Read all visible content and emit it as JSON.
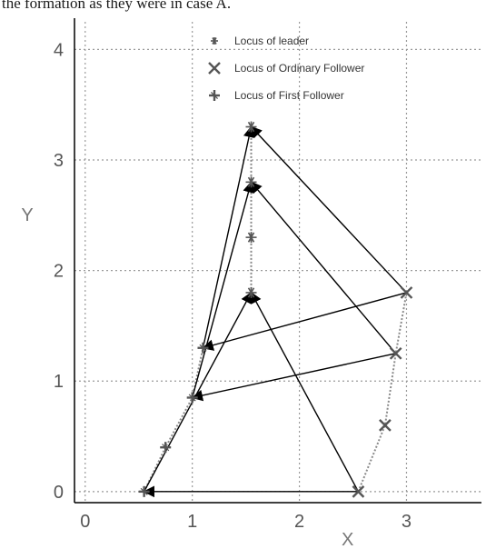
{
  "caption": "the formation as they were in case A.",
  "chart_data": {
    "type": "scatter",
    "xlabel": "X",
    "ylabel": "Y",
    "xlim": [
      -0.1,
      3.7
    ],
    "ylim": [
      -0.1,
      4.25
    ],
    "grid": true,
    "x_ticks": [
      "0",
      "1",
      "2",
      "3"
    ],
    "y_ticks": [
      "0",
      "1",
      "2",
      "3",
      "4"
    ],
    "legend_position": "top-center",
    "legend": [
      {
        "name": "Locus of leader",
        "marker": "star"
      },
      {
        "name": "Locus of Ordinary Follower",
        "marker": "x"
      },
      {
        "name": "Locus of First Follower",
        "marker": "plus"
      }
    ],
    "series": [
      {
        "name": "Locus of leader",
        "marker": "star",
        "points": [
          [
            1.55,
            1.8
          ],
          [
            1.55,
            2.3
          ],
          [
            1.55,
            2.8
          ],
          [
            1.55,
            3.3
          ]
        ]
      },
      {
        "name": "Locus of Ordinary Follower",
        "marker": "x",
        "points": [
          [
            2.55,
            0.0
          ],
          [
            2.8,
            0.6
          ],
          [
            2.9,
            1.25
          ],
          [
            3.0,
            1.8
          ]
        ]
      },
      {
        "name": "Locus of First Follower",
        "marker": "plus",
        "points": [
          [
            0.55,
            0.0
          ],
          [
            0.75,
            0.4
          ],
          [
            1.0,
            0.85
          ],
          [
            1.1,
            1.3
          ]
        ]
      }
    ],
    "arrows": [
      {
        "from": [
          2.55,
          0.0
        ],
        "to": [
          0.55,
          0.0
        ]
      },
      {
        "from": [
          0.55,
          0.0
        ],
        "to": [
          1.55,
          1.8
        ]
      },
      {
        "from": [
          2.55,
          0.0
        ],
        "to": [
          1.55,
          1.8
        ]
      },
      {
        "from": [
          1.0,
          0.85
        ],
        "to": [
          1.55,
          2.8
        ]
      },
      {
        "from": [
          1.1,
          1.3
        ],
        "to": [
          1.55,
          3.3
        ]
      },
      {
        "from": [
          2.9,
          1.25
        ],
        "to": [
          1.55,
          2.8
        ]
      },
      {
        "from": [
          3.0,
          1.8
        ],
        "to": [
          1.55,
          3.3
        ]
      },
      {
        "from": [
          3.0,
          1.8
        ],
        "to": [
          1.1,
          1.3
        ]
      },
      {
        "from": [
          2.9,
          1.25
        ],
        "to": [
          1.0,
          0.85
        ]
      }
    ],
    "colors": {
      "grid": "#9a9a9a",
      "axis": "#000000",
      "arrow": "#000000",
      "marker": "#555555",
      "trace": "#8a8a8a"
    }
  }
}
